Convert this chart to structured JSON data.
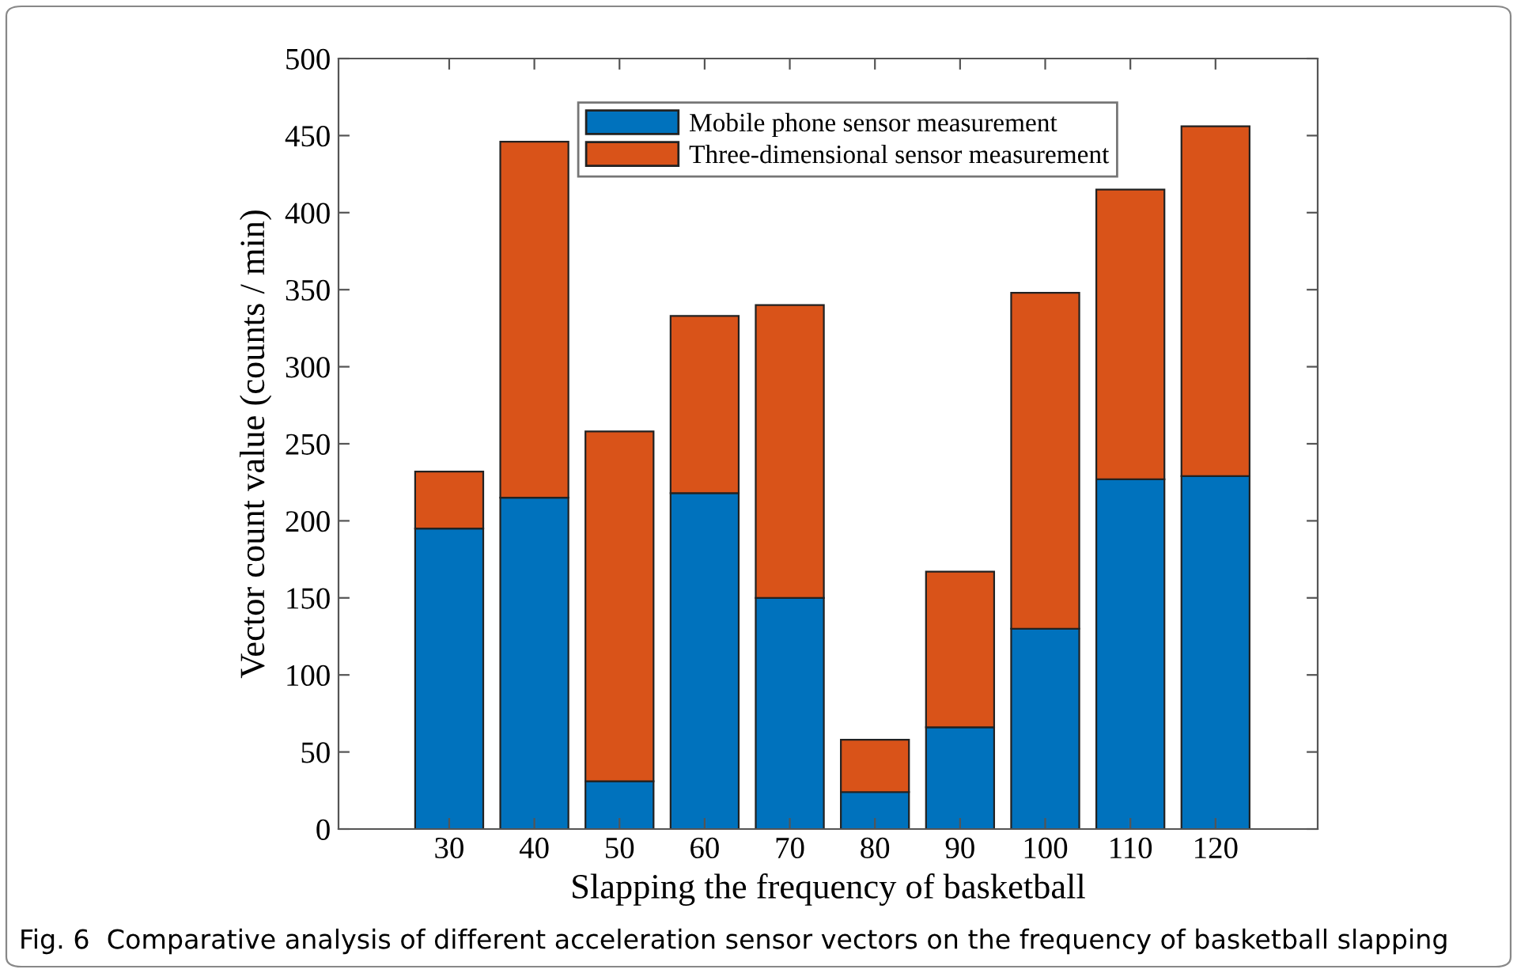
{
  "chart_data": {
    "type": "bar",
    "stacked": true,
    "xlabel": "Slapping the frequency of basketball",
    "ylabel": "Vector count value (counts / min)",
    "categories": [
      "30",
      "40",
      "50",
      "60",
      "70",
      "80",
      "90",
      "100",
      "110",
      "120"
    ],
    "series": [
      {
        "name": "Mobile phone sensor measurement",
        "color": "#0072bd",
        "values": [
          195,
          215,
          31,
          218,
          150,
          24,
          66,
          130,
          227,
          229
        ]
      },
      {
        "name": "Three-dimensional sensor measurement",
        "color": "#d95319",
        "values": [
          37,
          231,
          227,
          115,
          190,
          34,
          101,
          218,
          188,
          227
        ]
      }
    ],
    "ylim": [
      0,
      500
    ],
    "yticks": [
      0,
      50,
      100,
      150,
      200,
      250,
      300,
      350,
      400,
      450,
      500
    ],
    "grid": false,
    "legend": "top",
    "annotations": [
      "Fig. 6  Comparative analysis of different acceleration sensor vectors on the frequency of basketball slapping"
    ]
  }
}
